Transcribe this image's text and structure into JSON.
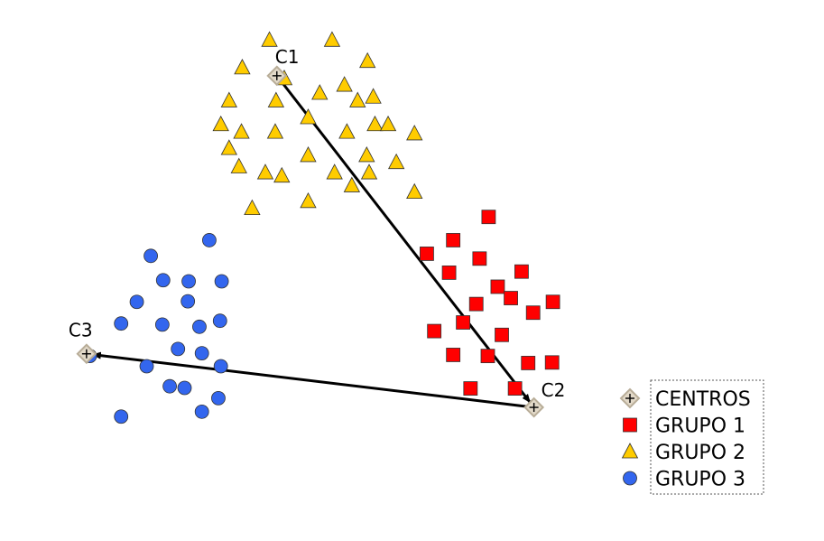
{
  "chart_data": {
    "type": "scatter",
    "title": "",
    "xlabel": "",
    "ylabel": "",
    "xlim": [
      0,
      100
    ],
    "ylim": [
      0,
      100
    ],
    "grid": false,
    "axes_visible": false,
    "legend_placement": "bottom-right",
    "legend": [
      "CENTROS",
      "GRUPO 1",
      "GRUPO 2",
      "GRUPO 3"
    ],
    "centers": {
      "name": "CENTROS",
      "marker": "diamond-plus",
      "color": "#e2d9c8",
      "points": [
        {
          "label": "C1",
          "x": 33.6,
          "y": 86.0
        },
        {
          "label": "C2",
          "x": 64.8,
          "y": 24.7
        },
        {
          "label": "C3",
          "x": 10.5,
          "y": 34.6
        }
      ]
    },
    "arrows": [
      {
        "from": "C1",
        "to": "C2"
      },
      {
        "from": "C2",
        "to": "C3"
      }
    ],
    "series": [
      {
        "name": "GRUPO 1",
        "marker": "square",
        "color": "#ff0000",
        "points": [
          [
            59.3,
            59.9
          ],
          [
            55.0,
            55.6
          ],
          [
            51.8,
            53.1
          ],
          [
            58.2,
            52.2
          ],
          [
            54.5,
            49.6
          ],
          [
            63.3,
            49.8
          ],
          [
            60.4,
            47.0
          ],
          [
            57.8,
            43.8
          ],
          [
            62.0,
            44.9
          ],
          [
            67.1,
            44.2
          ],
          [
            64.7,
            42.2
          ],
          [
            56.2,
            40.4
          ],
          [
            52.7,
            38.8
          ],
          [
            60.9,
            38.1
          ],
          [
            55.0,
            34.4
          ],
          [
            59.2,
            34.2
          ],
          [
            64.1,
            32.9
          ],
          [
            67.0,
            33.0
          ],
          [
            57.1,
            28.2
          ],
          [
            62.5,
            28.2
          ]
        ]
      },
      {
        "name": "GRUPO 2",
        "marker": "triangle",
        "color": "#ffcc00",
        "points": [
          [
            32.7,
            92.6
          ],
          [
            40.3,
            92.6
          ],
          [
            29.4,
            87.5
          ],
          [
            44.6,
            88.7
          ],
          [
            34.5,
            85.5
          ],
          [
            41.8,
            84.3
          ],
          [
            27.8,
            81.4
          ],
          [
            33.5,
            81.4
          ],
          [
            38.8,
            82.8
          ],
          [
            43.4,
            81.4
          ],
          [
            45.3,
            82.1
          ],
          [
            37.4,
            78.3
          ],
          [
            26.8,
            77.0
          ],
          [
            29.3,
            75.6
          ],
          [
            33.4,
            75.6
          ],
          [
            42.1,
            75.6
          ],
          [
            45.5,
            77.0
          ],
          [
            47.1,
            77.0
          ],
          [
            50.3,
            75.3
          ],
          [
            27.8,
            72.6
          ],
          [
            37.4,
            71.3
          ],
          [
            44.5,
            71.3
          ],
          [
            29.0,
            69.2
          ],
          [
            32.2,
            68.1
          ],
          [
            34.2,
            67.5
          ],
          [
            40.6,
            68.1
          ],
          [
            44.8,
            68.1
          ],
          [
            48.1,
            70.0
          ],
          [
            42.7,
            65.7
          ],
          [
            50.3,
            64.5
          ],
          [
            30.6,
            61.5
          ],
          [
            37.4,
            62.8
          ]
        ]
      },
      {
        "name": "GRUPO 3",
        "marker": "circle",
        "color": "#3366ee",
        "points": [
          [
            25.4,
            55.6
          ],
          [
            18.3,
            52.7
          ],
          [
            19.8,
            48.2
          ],
          [
            22.9,
            48.0
          ],
          [
            26.9,
            48.0
          ],
          [
            16.6,
            44.2
          ],
          [
            22.8,
            44.3
          ],
          [
            14.7,
            40.2
          ],
          [
            19.7,
            40.0
          ],
          [
            24.2,
            39.6
          ],
          [
            26.7,
            40.7
          ],
          [
            10.9,
            34.2
          ],
          [
            21.6,
            35.5
          ],
          [
            24.5,
            34.7
          ],
          [
            17.8,
            32.3
          ],
          [
            26.8,
            32.3
          ],
          [
            20.6,
            28.6
          ],
          [
            22.4,
            28.3
          ],
          [
            26.5,
            26.4
          ],
          [
            24.5,
            23.9
          ],
          [
            14.7,
            23.0
          ]
        ]
      }
    ]
  }
}
